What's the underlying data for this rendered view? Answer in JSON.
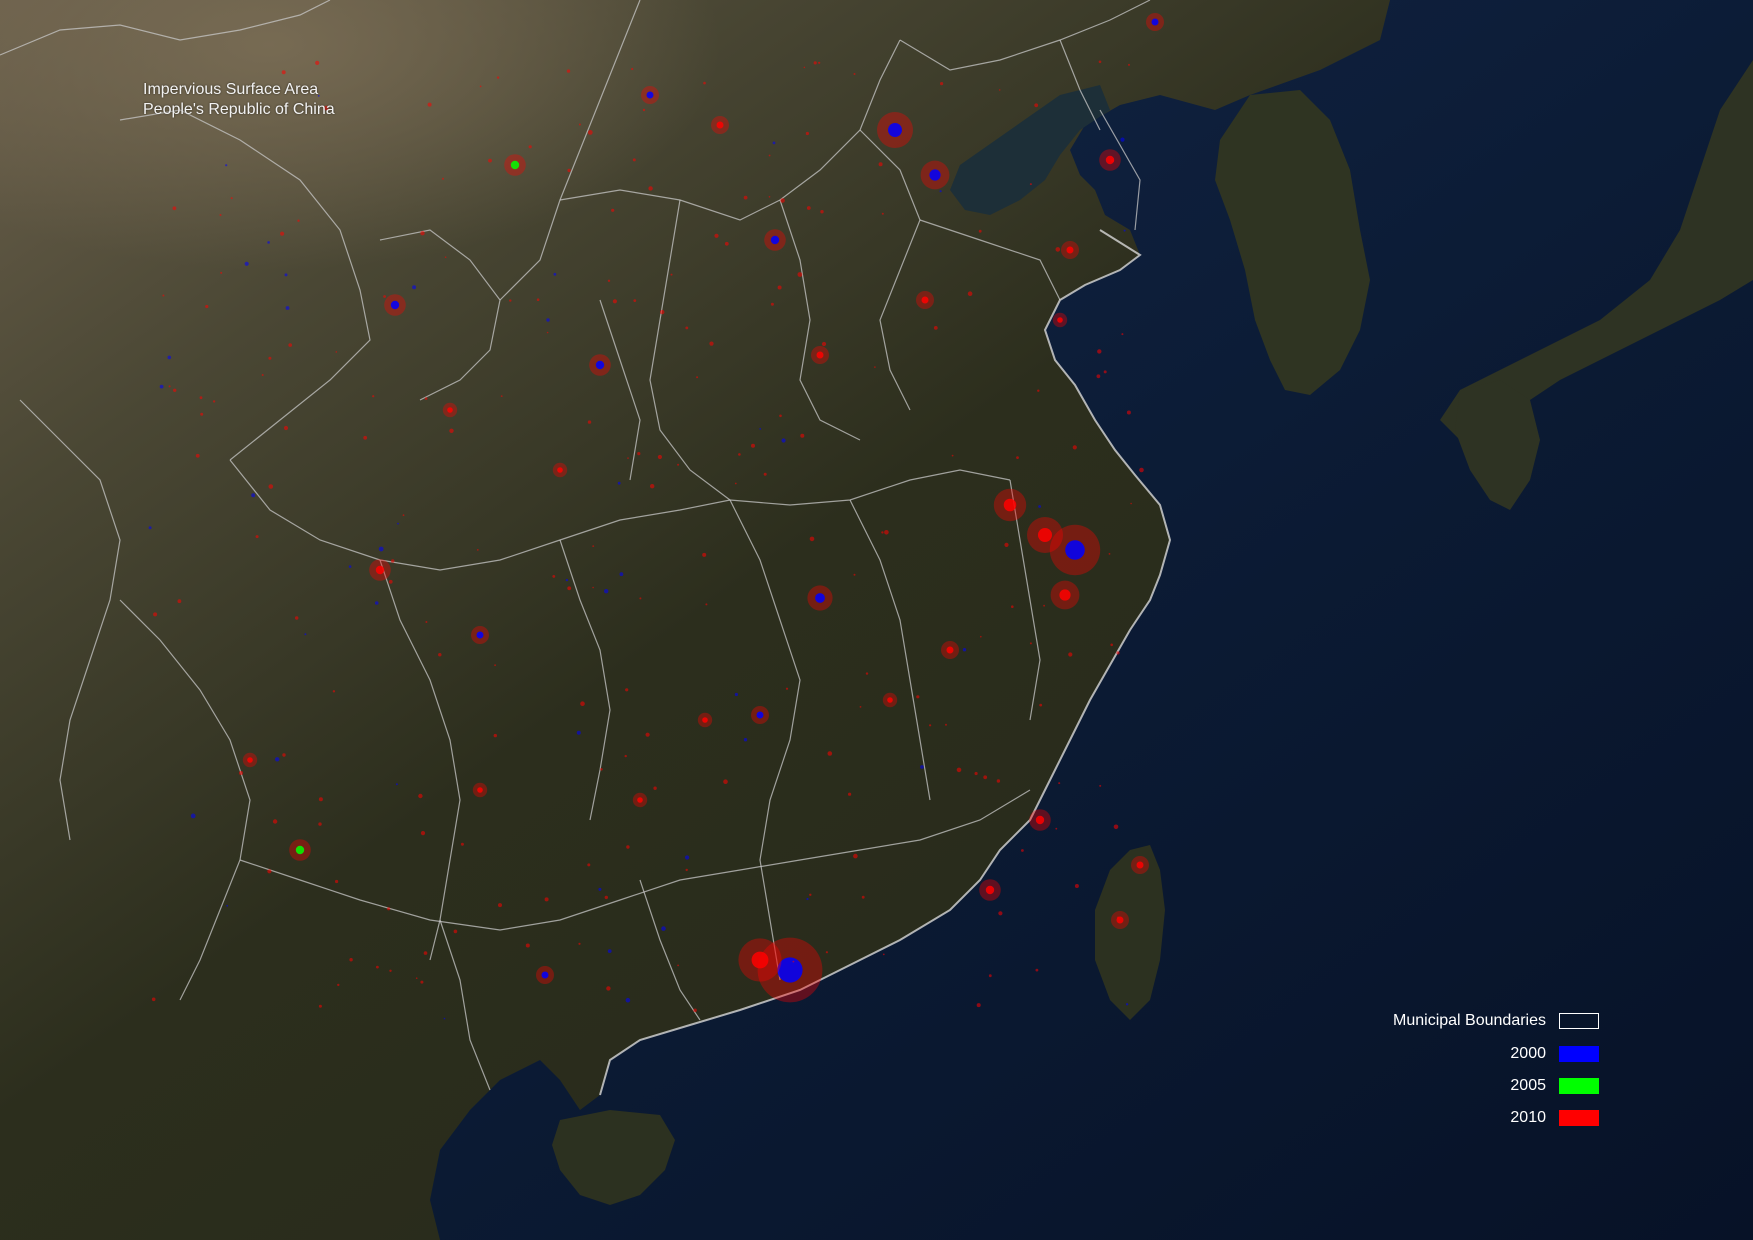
{
  "title": {
    "line1": "Impervious Surface Area",
    "line2": "People's Republic of China"
  },
  "legend": [
    {
      "label": "Municipal Boundaries",
      "color": "#ffffff",
      "style": "outline"
    },
    {
      "label": "2000",
      "color": "#0000ff",
      "style": "fill"
    },
    {
      "label": "2005",
      "color": "#00ff00",
      "style": "fill"
    },
    {
      "label": "2010",
      "color": "#ff0000",
      "style": "fill"
    }
  ],
  "colors": {
    "ocean": "#0b1a33",
    "land_dark": "#2b2d1d",
    "land_desert": "#5a5141",
    "boundary": "#c8c8c8",
    "urban_2000": "#0000ff",
    "urban_2005": "#00ff00",
    "urban_2010": "#ff0000"
  }
}
